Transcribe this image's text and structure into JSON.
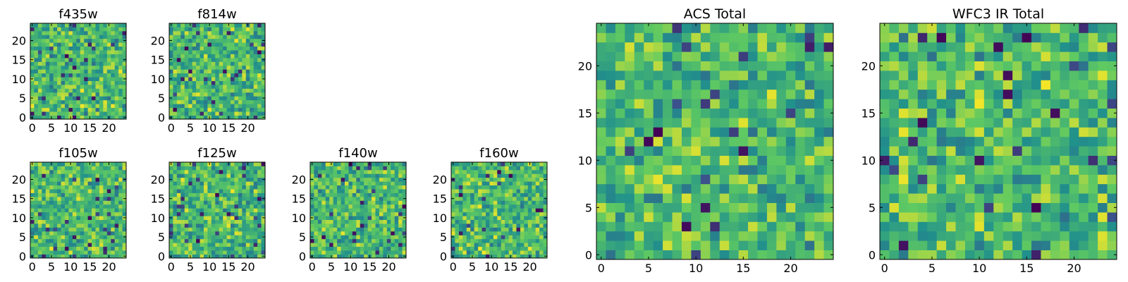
{
  "figure": {
    "background": "#ffffff",
    "colormap": "viridis",
    "colormap_stops": [
      "#440154",
      "#3b528b",
      "#21918c",
      "#5ec962",
      "#fde725"
    ]
  },
  "chart_data": [
    {
      "type": "heatmap",
      "title": "f435w",
      "size": 25,
      "xlim": [
        0,
        24
      ],
      "ylim": [
        0,
        24
      ],
      "xticks": [
        0,
        5,
        10,
        15,
        20
      ],
      "yticks": [
        0,
        5,
        10,
        15,
        20
      ],
      "xtick_labels": [
        "0",
        "5",
        "10",
        "15",
        "20"
      ],
      "ytick_labels": [
        "0",
        "5",
        "10",
        "15",
        "20"
      ],
      "grid": false,
      "value_range": [
        0,
        1
      ],
      "seed": 11
    },
    {
      "type": "heatmap",
      "title": "f814w",
      "size": 25,
      "xlim": [
        0,
        24
      ],
      "ylim": [
        0,
        24
      ],
      "xticks": [
        0,
        5,
        10,
        15,
        20
      ],
      "yticks": [
        0,
        5,
        10,
        15,
        20
      ],
      "xtick_labels": [
        "0",
        "5",
        "10",
        "15",
        "20"
      ],
      "ytick_labels": [
        "0",
        "5",
        "10",
        "15",
        "20"
      ],
      "grid": false,
      "value_range": [
        0,
        1
      ],
      "seed": 23
    },
    {
      "type": "heatmap",
      "title": "ACS Total",
      "size": 25,
      "xlim": [
        0,
        24
      ],
      "ylim": [
        0,
        24
      ],
      "xticks": [
        0,
        5,
        10,
        15,
        20
      ],
      "yticks": [
        0,
        5,
        10,
        15,
        20
      ],
      "xtick_labels": [
        "0",
        "5",
        "10",
        "15",
        "20"
      ],
      "ytick_labels": [
        "0",
        "5",
        "10",
        "15",
        "20"
      ],
      "grid": false,
      "value_range": [
        0,
        1
      ],
      "seed": 37
    },
    {
      "type": "heatmap",
      "title": "WFC3 IR Total",
      "size": 25,
      "xlim": [
        0,
        24
      ],
      "ylim": [
        0,
        24
      ],
      "xticks": [
        0,
        5,
        10,
        15,
        20
      ],
      "yticks": [
        0,
        5,
        10,
        15,
        20
      ],
      "xtick_labels": [
        "0",
        "5",
        "10",
        "15",
        "20"
      ],
      "ytick_labels": [
        "0",
        "5",
        "10",
        "15",
        "20"
      ],
      "grid": false,
      "value_range": [
        0,
        1
      ],
      "seed": 41
    },
    {
      "type": "heatmap",
      "title": "f105w",
      "size": 25,
      "xlim": [
        0,
        24
      ],
      "ylim": [
        0,
        24
      ],
      "xticks": [
        0,
        5,
        10,
        15,
        20
      ],
      "yticks": [
        0,
        5,
        10,
        15,
        20
      ],
      "xtick_labels": [
        "0",
        "5",
        "10",
        "15",
        "20"
      ],
      "ytick_labels": [
        "0",
        "5",
        "10",
        "15",
        "20"
      ],
      "grid": false,
      "value_range": [
        0,
        1
      ],
      "seed": 53
    },
    {
      "type": "heatmap",
      "title": "f125w",
      "size": 25,
      "xlim": [
        0,
        24
      ],
      "ylim": [
        0,
        24
      ],
      "xticks": [
        0,
        5,
        10,
        15,
        20
      ],
      "yticks": [
        0,
        5,
        10,
        15,
        20
      ],
      "xtick_labels": [
        "0",
        "5",
        "10",
        "15",
        "20"
      ],
      "ytick_labels": [
        "0",
        "5",
        "10",
        "15",
        "20"
      ],
      "grid": false,
      "value_range": [
        0,
        1
      ],
      "seed": 67
    },
    {
      "type": "heatmap",
      "title": "f140w",
      "size": 25,
      "xlim": [
        0,
        24
      ],
      "ylim": [
        0,
        24
      ],
      "xticks": [
        0,
        5,
        10,
        15,
        20
      ],
      "yticks": [
        0,
        5,
        10,
        15,
        20
      ],
      "xtick_labels": [
        "0",
        "5",
        "10",
        "15",
        "20"
      ],
      "ytick_labels": [
        "0",
        "5",
        "10",
        "15",
        "20"
      ],
      "grid": false,
      "value_range": [
        0,
        1
      ],
      "seed": 79
    },
    {
      "type": "heatmap",
      "title": "f160w",
      "size": 25,
      "xlim": [
        0,
        24
      ],
      "ylim": [
        0,
        24
      ],
      "xticks": [
        0,
        5,
        10,
        15,
        20
      ],
      "yticks": [
        0,
        5,
        10,
        15,
        20
      ],
      "xtick_labels": [
        "0",
        "5",
        "10",
        "15",
        "20"
      ],
      "ytick_labels": [
        "0",
        "5",
        "10",
        "15",
        "20"
      ],
      "grid": false,
      "value_range": [
        0,
        1
      ],
      "seed": 97
    }
  ]
}
